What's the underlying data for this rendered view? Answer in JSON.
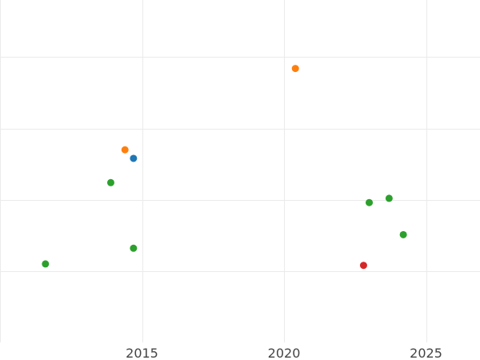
{
  "chart_data": {
    "type": "scatter",
    "title": "",
    "xlabel": "",
    "ylabel": "",
    "xlim": [
      2010.0,
      2026.9
    ],
    "ylim": [
      0,
      4.8
    ],
    "x_ticks": [
      {
        "value": 2010,
        "label": ""
      },
      {
        "value": 2015,
        "label": "2015"
      },
      {
        "value": 2020,
        "label": "2020"
      },
      {
        "value": 2025,
        "label": "2025"
      }
    ],
    "y_ticks": [
      1,
      2,
      3,
      4
    ],
    "grid": true,
    "legend": "none",
    "points": [
      {
        "x": 2020.4,
        "y": 3.84,
        "color": "#ff7f0e"
      },
      {
        "x": 2014.4,
        "y": 2.7,
        "color": "#ff7f0e"
      },
      {
        "x": 2014.7,
        "y": 2.58,
        "color": "#1f77b4"
      },
      {
        "x": 2013.9,
        "y": 2.24,
        "color": "#2ca02c"
      },
      {
        "x": 2023.7,
        "y": 2.02,
        "color": "#2ca02c"
      },
      {
        "x": 2023.0,
        "y": 1.96,
        "color": "#2ca02c"
      },
      {
        "x": 2024.2,
        "y": 1.51,
        "color": "#2ca02c"
      },
      {
        "x": 2014.7,
        "y": 1.32,
        "color": "#2ca02c"
      },
      {
        "x": 2011.6,
        "y": 1.1,
        "color": "#2ca02c"
      },
      {
        "x": 2022.8,
        "y": 1.08,
        "color": "#d62728"
      }
    ]
  }
}
